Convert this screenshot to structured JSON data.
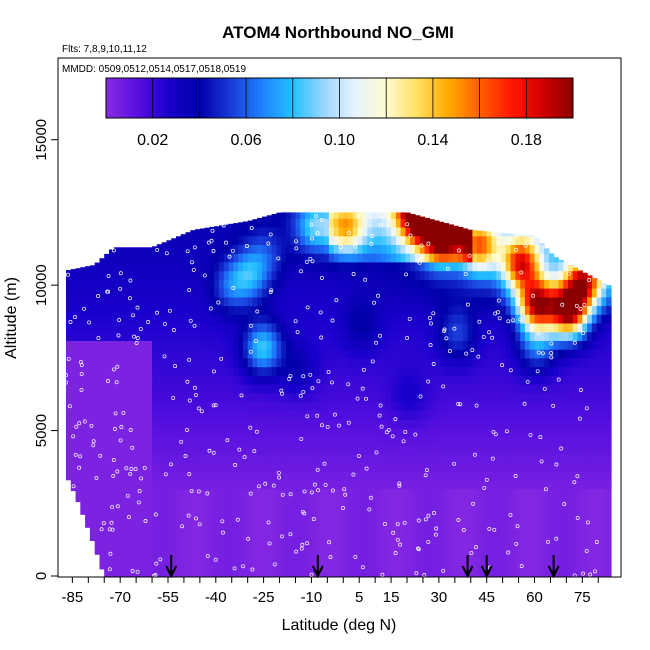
{
  "chart_data": {
    "type": "heatmap",
    "title": "ATOM4 Northbound NO_GMI",
    "flights_note": "Flts: 7,8,9,10,11,12",
    "dates_note": "MMDD: 0509,0512,0514,0517,0518,0519",
    "xlabel": "Latitude (deg N)",
    "ylabel": "Altitude (m)",
    "xlim": [
      -87,
      84
    ],
    "ylim": [
      0,
      17500
    ],
    "x_ticks": [
      -85,
      -70,
      -55,
      -40,
      -25,
      -10,
      5,
      15,
      30,
      45,
      60,
      75
    ],
    "y_ticks": [
      0,
      5000,
      10000,
      15000
    ],
    "colorbar": {
      "range": [
        0,
        0.2
      ],
      "tick_values": [
        0.02,
        0.06,
        0.1,
        0.14,
        0.18
      ],
      "tick_labels": [
        "0.02",
        "0.06",
        "0.10",
        "0.14",
        "0.18"
      ],
      "colors": [
        "#8a2be2",
        "#5a10e0",
        "#1a00cc",
        "#0000a8",
        "#1a3ad8",
        "#1e80ff",
        "#22c0ff",
        "#9ad6ff",
        "#e8f4ff",
        "#fffbd0",
        "#ffe060",
        "#ffaa00",
        "#ff6000",
        "#ff1a00",
        "#d40000",
        "#8b0000"
      ]
    },
    "profile": [
      {
        "lat": -87,
        "top": 10500
      },
      {
        "lat": -78,
        "top": 10700
      },
      {
        "lat": -72,
        "top": 11300
      },
      {
        "lat": -60,
        "top": 11300
      },
      {
        "lat": -47,
        "top": 11900
      },
      {
        "lat": -30,
        "top": 12200
      },
      {
        "lat": -20,
        "top": 12500
      },
      {
        "lat": 20,
        "top": 12500
      },
      {
        "lat": 40,
        "top": 11900
      },
      {
        "lat": 60,
        "top": 11700
      },
      {
        "lat": 66,
        "top": 11000
      },
      {
        "lat": 83,
        "top": 10000
      }
    ],
    "bottom_profile": [
      {
        "lat": -87,
        "bottom": 3500
      },
      {
        "lat": -83,
        "bottom": 2500
      },
      {
        "lat": -78,
        "bottom": 1000
      },
      {
        "lat": -75,
        "bottom": 0
      }
    ],
    "high_values": [
      {
        "lat": 23,
        "alt": 12300,
        "value": 0.16
      },
      {
        "lat": 30,
        "alt": 11500,
        "value": 0.13
      },
      {
        "lat": 42,
        "alt": 11200,
        "value": 0.12
      },
      {
        "lat": 55,
        "alt": 10600,
        "value": 0.14
      },
      {
        "lat": 60,
        "alt": 9200,
        "value": 0.17
      },
      {
        "lat": 70,
        "alt": 9000,
        "value": 0.19
      },
      {
        "lat": 75,
        "alt": 10000,
        "value": 0.14
      },
      {
        "lat": 0,
        "alt": 11800,
        "value": 0.1
      },
      {
        "lat": -10,
        "alt": 11900,
        "value": 0.07
      },
      {
        "lat": -25,
        "alt": 10900,
        "value": 0.04
      },
      {
        "lat": -30,
        "alt": 10200,
        "value": 0.06
      },
      {
        "lat": -26,
        "alt": 7700,
        "value": 0.08
      },
      {
        "lat": -36,
        "alt": 9800,
        "value": 0.05
      },
      {
        "lat": 35,
        "alt": 8200,
        "value": 0.05
      },
      {
        "lat": 60,
        "alt": 7800,
        "value": 0.06
      },
      {
        "lat": -15,
        "alt": 7000,
        "value": 0.035
      },
      {
        "lat": 5,
        "alt": 8500,
        "value": 0.035
      },
      {
        "lat": 20,
        "alt": 6000,
        "value": 0.03
      }
    ],
    "arrows_lat": [
      -54,
      -8,
      39,
      45,
      66
    ]
  }
}
